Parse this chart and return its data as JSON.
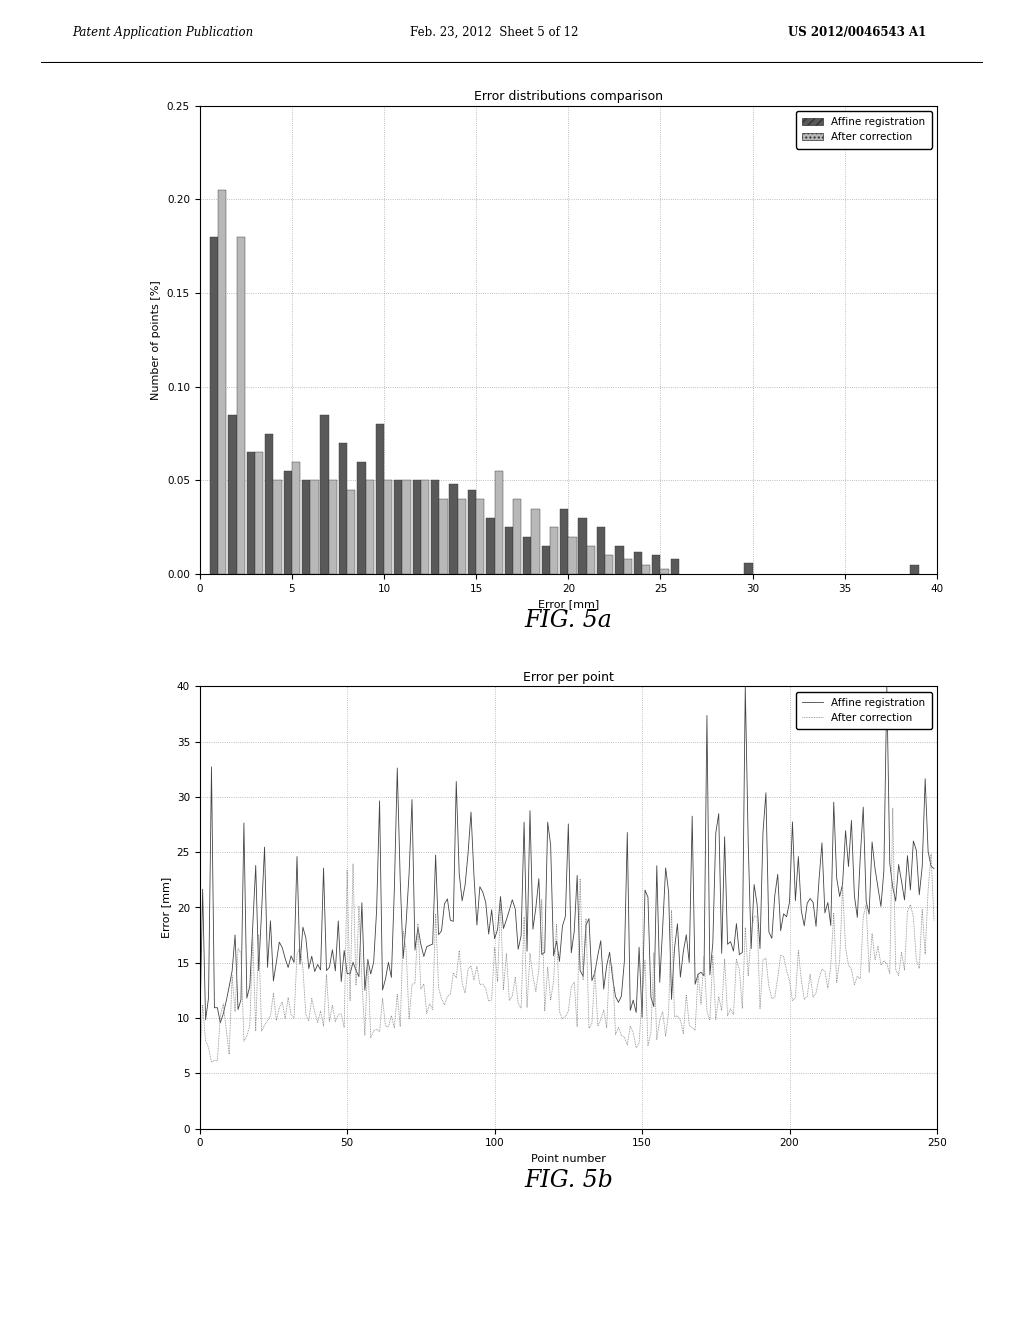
{
  "fig5a_title": "Error distributions comparison",
  "fig5a_xlabel": "Error [mm]",
  "fig5a_ylabel": "Number of points [%]",
  "fig5a_xlim": [
    0,
    40
  ],
  "fig5a_ylim": [
    0,
    0.25
  ],
  "fig5a_yticks": [
    0,
    0.05,
    0.1,
    0.15,
    0.2,
    0.25
  ],
  "fig5a_xticks": [
    0,
    5,
    10,
    15,
    20,
    25,
    30,
    35,
    40
  ],
  "fig5a_legend": [
    "Affine registration",
    "After correction"
  ],
  "affine_color": "#595959",
  "correction_color": "#b8b8b8",
  "fig5b_title": "Error per point",
  "fig5b_xlabel": "Point number",
  "fig5b_ylabel": "Error [mm]",
  "fig5b_xlim": [
    0,
    250
  ],
  "fig5b_ylim": [
    0,
    40
  ],
  "fig5b_yticks": [
    0,
    5,
    10,
    15,
    20,
    25,
    30,
    35,
    40
  ],
  "fig5b_xticks": [
    0,
    50,
    100,
    150,
    200,
    250
  ],
  "fig5b_legend": [
    "Affine registration",
    "After correction"
  ],
  "header_text": "Patent Application Publication",
  "header_date": "Feb. 23, 2012  Sheet 5 of 12",
  "header_patent": "US 2012/0046543 A1",
  "fig5a_label": "FIG. 5a",
  "fig5b_label": "FIG. 5b",
  "background_color": "#ffffff",
  "grid_color": "#aaaaaa"
}
